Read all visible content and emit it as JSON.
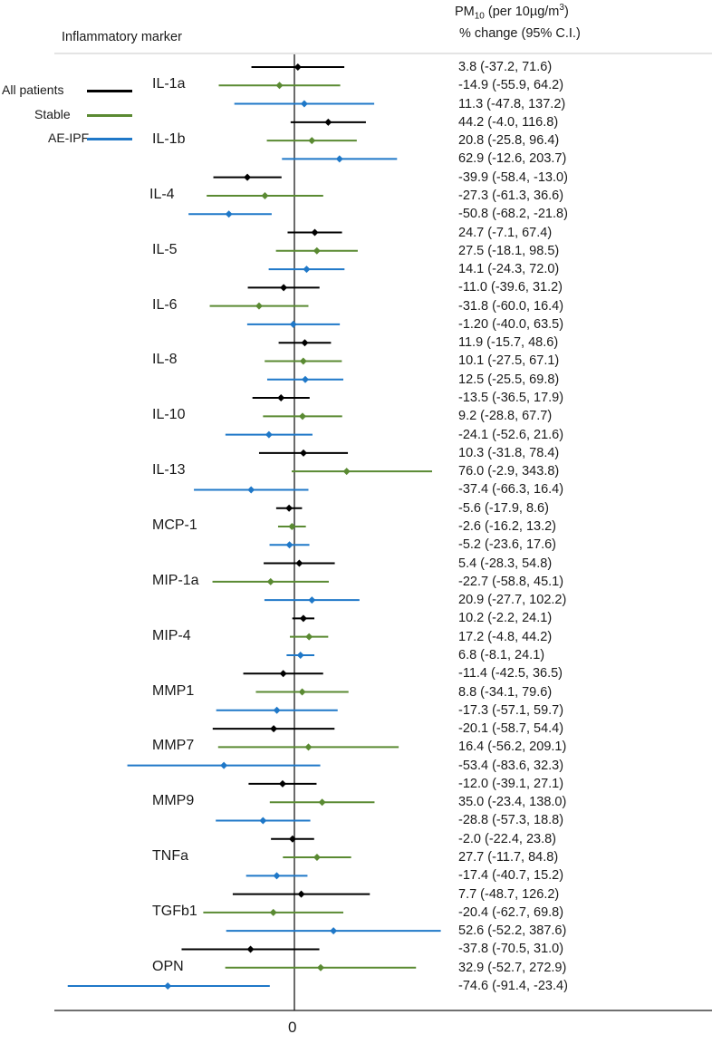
{
  "chart_data": {
    "type": "forest",
    "header": {
      "column_left": "Inflammatory marker",
      "pm_prefix": "PM",
      "pm_sub": "10",
      "pm_mid": " (per 10µg/m",
      "pm_sup": "3",
      "pm_suffix": ")",
      "column_right": "% change (95% C.I.)"
    },
    "x_tick_label": "0",
    "reference_value": 0,
    "legend": [
      {
        "name": "All patients",
        "color": "#000000"
      },
      {
        "name": "Stable",
        "color": "#5a8a32"
      },
      {
        "name": "AE-IPF",
        "color": "#1f78c8"
      }
    ],
    "markers": [
      {
        "name": "IL-1a",
        "rows": [
          {
            "series": "All patients",
            "est": 3.8,
            "lo": -37.2,
            "hi": 71.6,
            "label": "3.8 (-37.2, 71.6)"
          },
          {
            "series": "Stable",
            "est": -14.9,
            "lo": -55.9,
            "hi": 64.2,
            "label": "-14.9 (-55.9, 64.2)"
          },
          {
            "series": "AE-IPF",
            "est": 11.3,
            "lo": -47.8,
            "hi": 137.2,
            "label": "11.3 (-47.8, 137.2)"
          }
        ]
      },
      {
        "name": "IL-1b",
        "rows": [
          {
            "series": "All patients",
            "est": 44.2,
            "lo": -4.0,
            "hi": 116.8,
            "label": "44.2 (-4.0, 116.8)"
          },
          {
            "series": "Stable",
            "est": 20.8,
            "lo": -25.8,
            "hi": 96.4,
            "label": "20.8 (-25.8, 96.4)"
          },
          {
            "series": "AE-IPF",
            "est": 62.9,
            "lo": -12.6,
            "hi": 203.7,
            "label": "62.9 (-12.6, 203.7)"
          }
        ]
      },
      {
        "name": "IL-4",
        "rows": [
          {
            "series": "All patients",
            "est": -39.9,
            "lo": -58.4,
            "hi": -13.0,
            "label": "-39.9 (-58.4, -13.0)"
          },
          {
            "series": "Stable",
            "est": -27.3,
            "lo": -61.3,
            "hi": 36.6,
            "label": "-27.3 (-61.3, 36.6)"
          },
          {
            "series": "AE-IPF",
            "est": -50.8,
            "lo": -68.2,
            "hi": -21.8,
            "label": "-50.8 (-68.2, -21.8)"
          }
        ]
      },
      {
        "name": "IL-5",
        "rows": [
          {
            "series": "All patients",
            "est": 24.7,
            "lo": -7.1,
            "hi": 67.4,
            "label": "24.7 (-7.1, 67.4)"
          },
          {
            "series": "Stable",
            "est": 27.5,
            "lo": -18.1,
            "hi": 98.5,
            "label": "27.5 (-18.1, 98.5)"
          },
          {
            "series": "AE-IPF",
            "est": 14.1,
            "lo": -24.3,
            "hi": 72.0,
            "label": "14.1 (-24.3, 72.0)"
          }
        ]
      },
      {
        "name": "IL-6",
        "rows": [
          {
            "series": "All patients",
            "est": -11.0,
            "lo": -39.6,
            "hi": 31.2,
            "label": "-11.0 (-39.6, 31.2)"
          },
          {
            "series": "Stable",
            "est": -31.8,
            "lo": -60.0,
            "hi": 16.4,
            "label": "-31.8 (-60.0, 16.4)"
          },
          {
            "series": "AE-IPF",
            "est": -1.2,
            "lo": -40.0,
            "hi": 63.5,
            "label": "-1.20 (-40.0, 63.5)"
          }
        ]
      },
      {
        "name": "IL-8",
        "rows": [
          {
            "series": "All patients",
            "est": 11.9,
            "lo": -15.7,
            "hi": 48.6,
            "label": "11.9 (-15.7, 48.6)"
          },
          {
            "series": "Stable",
            "est": 10.1,
            "lo": -27.5,
            "hi": 67.1,
            "label": "10.1 (-27.5, 67.1)"
          },
          {
            "series": "AE-IPF",
            "est": 12.5,
            "lo": -25.5,
            "hi": 69.8,
            "label": "12.5 (-25.5, 69.8)"
          }
        ]
      },
      {
        "name": "IL-10",
        "rows": [
          {
            "series": "All patients",
            "est": -13.5,
            "lo": -36.5,
            "hi": 17.9,
            "label": "-13.5 (-36.5, 17.9)"
          },
          {
            "series": "Stable",
            "est": 9.2,
            "lo": -28.8,
            "hi": 67.7,
            "label": "9.2 (-28.8, 67.7)"
          },
          {
            "series": "AE-IPF",
            "est": -24.1,
            "lo": -52.6,
            "hi": 21.6,
            "label": "-24.1 (-52.6, 21.6)"
          }
        ]
      },
      {
        "name": "IL-13",
        "rows": [
          {
            "series": "All patients",
            "est": 10.3,
            "lo": -31.8,
            "hi": 78.4,
            "label": "10.3 (-31.8, 78.4)"
          },
          {
            "series": "Stable",
            "est": 76.0,
            "lo": -2.9,
            "hi": 343.8,
            "label": "76.0 (-2.9, 343.8)"
          },
          {
            "series": "AE-IPF",
            "est": -37.4,
            "lo": -66.3,
            "hi": 16.4,
            "label": "-37.4 (-66.3, 16.4)"
          }
        ]
      },
      {
        "name": "MCP-1",
        "rows": [
          {
            "series": "All patients",
            "est": -5.6,
            "lo": -17.9,
            "hi": 8.6,
            "label": "-5.6 (-17.9, 8.6)"
          },
          {
            "series": "Stable",
            "est": -2.6,
            "lo": -16.2,
            "hi": 13.2,
            "label": "-2.6 (-16.2, 13.2)"
          },
          {
            "series": "AE-IPF",
            "est": -5.2,
            "lo": -23.6,
            "hi": 17.6,
            "label": "-5.2 (-23.6, 17.6)"
          }
        ]
      },
      {
        "name": "MIP-1a",
        "rows": [
          {
            "series": "All patients",
            "est": 5.4,
            "lo": -28.3,
            "hi": 54.8,
            "label": "5.4 (-28.3, 54.8)"
          },
          {
            "series": "Stable",
            "est": -22.7,
            "lo": -58.8,
            "hi": 45.1,
            "label": "-22.7 (-58.8, 45.1)"
          },
          {
            "series": "AE-IPF",
            "est": 20.9,
            "lo": -27.7,
            "hi": 102.2,
            "label": "20.9 (-27.7, 102.2)"
          }
        ]
      },
      {
        "name": "MIP-4",
        "rows": [
          {
            "series": "All patients",
            "est": 10.2,
            "lo": -2.2,
            "hi": 24.1,
            "label": "10.2 (-2.2, 24.1)"
          },
          {
            "series": "Stable",
            "est": 17.2,
            "lo": -4.8,
            "hi": 44.2,
            "label": "17.2 (-4.8, 44.2)"
          },
          {
            "series": "AE-IPF",
            "est": 6.8,
            "lo": -8.1,
            "hi": 24.1,
            "label": "6.8 (-8.1, 24.1)"
          }
        ]
      },
      {
        "name": "MMP1",
        "rows": [
          {
            "series": "All patients",
            "est": -11.4,
            "lo": -42.5,
            "hi": 36.5,
            "label": "-11.4 (-42.5, 36.5)"
          },
          {
            "series": "Stable",
            "est": 8.8,
            "lo": -34.1,
            "hi": 79.6,
            "label": "8.8 (-34.1, 79.6)"
          },
          {
            "series": "AE-IPF",
            "est": -17.3,
            "lo": -57.1,
            "hi": 59.7,
            "label": "-17.3 (-57.1, 59.7)"
          }
        ]
      },
      {
        "name": "MMP7",
        "rows": [
          {
            "series": "All patients",
            "est": -20.1,
            "lo": -58.7,
            "hi": 54.4,
            "label": "-20.1 (-58.7, 54.4)"
          },
          {
            "series": "Stable",
            "est": 16.4,
            "lo": -56.2,
            "hi": 209.1,
            "label": "16.4 (-56.2, 209.1)"
          },
          {
            "series": "AE-IPF",
            "est": -53.4,
            "lo": -83.6,
            "hi": 32.3,
            "label": "-53.4 (-83.6, 32.3)"
          }
        ]
      },
      {
        "name": "MMP9",
        "rows": [
          {
            "series": "All patients",
            "est": -12.0,
            "lo": -39.1,
            "hi": 27.1,
            "label": "-12.0 (-39.1, 27.1)"
          },
          {
            "series": "Stable",
            "est": 35.0,
            "lo": -23.4,
            "hi": 138.0,
            "label": "35.0 (-23.4, 138.0)"
          },
          {
            "series": "AE-IPF",
            "est": -28.8,
            "lo": -57.3,
            "hi": 18.8,
            "label": "-28.8 (-57.3, 18.8)"
          }
        ]
      },
      {
        "name": "TNFa",
        "rows": [
          {
            "series": "All patients",
            "est": -2.0,
            "lo": -22.4,
            "hi": 23.8,
            "label": "-2.0 (-22.4, 23.8)"
          },
          {
            "series": "Stable",
            "est": 27.7,
            "lo": -11.7,
            "hi": 84.8,
            "label": "27.7 (-11.7, 84.8)"
          },
          {
            "series": "AE-IPF",
            "est": -17.4,
            "lo": -40.7,
            "hi": 15.2,
            "label": "-17.4 (-40.7, 15.2)"
          }
        ]
      },
      {
        "name": "TGFb1",
        "rows": [
          {
            "series": "All patients",
            "est": 7.7,
            "lo": -48.7,
            "hi": 126.2,
            "label": "7.7 (-48.7, 126.2)"
          },
          {
            "series": "Stable",
            "est": -20.4,
            "lo": -62.7,
            "hi": 69.8,
            "label": "-20.4 (-62.7, 69.8)"
          },
          {
            "series": "AE-IPF",
            "est": 52.6,
            "lo": -52.2,
            "hi": 387.6,
            "label": "52.6 (-52.2, 387.6)"
          }
        ]
      },
      {
        "name": "OPN",
        "rows": [
          {
            "series": "All patients",
            "est": -37.8,
            "lo": -70.5,
            "hi": 31.0,
            "label": "-37.8 (-70.5, 31.0)"
          },
          {
            "series": "Stable",
            "est": 32.9,
            "lo": -52.7,
            "hi": 272.9,
            "label": "32.9 (-52.7, 272.9)"
          },
          {
            "series": "AE-IPF",
            "est": -74.6,
            "lo": -91.4,
            "hi": -23.4,
            "label": "-74.6 (-91.4, -23.4)"
          }
        ]
      }
    ]
  }
}
